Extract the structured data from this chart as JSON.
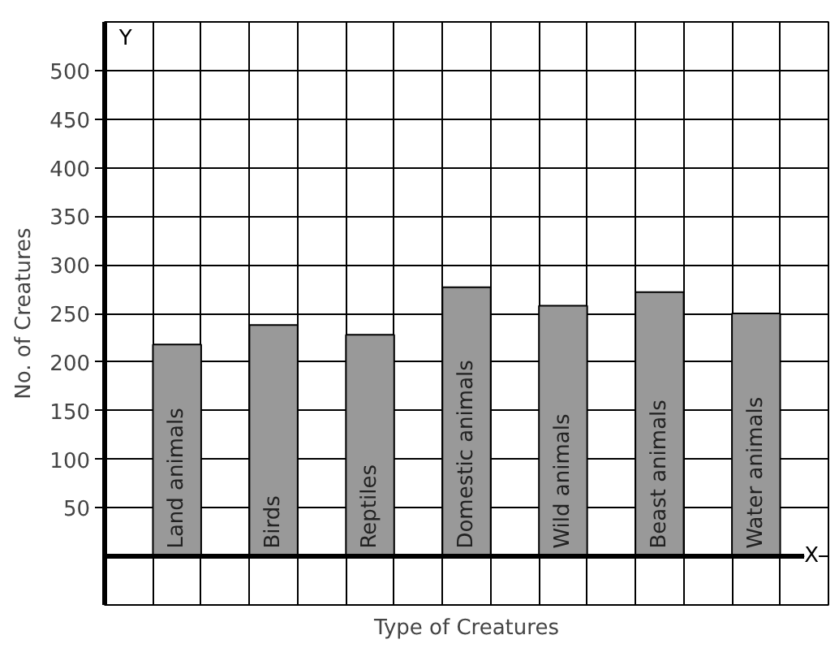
{
  "chart_data": {
    "type": "bar",
    "xlabel": "Type of Creatures",
    "ylabel": "No. of Creatures",
    "categories": [
      "Land animals",
      "Birds",
      "Reptiles",
      "Domestic animals",
      "Wild animals",
      "Beast animals",
      "Water animals"
    ],
    "values": [
      218,
      238,
      228,
      277,
      258,
      272,
      250
    ],
    "color": "#999999",
    "ylim": [
      -50,
      550
    ],
    "yticks": [
      50,
      100,
      150,
      200,
      250,
      300,
      350,
      400,
      450,
      500
    ],
    "grid": true,
    "annotations": [
      "X",
      "Y"
    ]
  }
}
